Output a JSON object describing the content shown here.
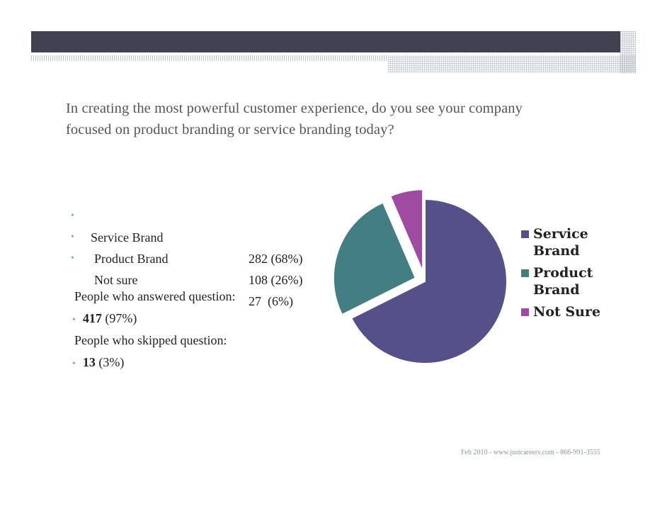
{
  "question": {
    "line1": "In creating the most powerful customer experience, do you see your company",
    "line2": "focused on product branding or service branding today?"
  },
  "responses": [
    {
      "label": "Service Brand",
      "value": "282 (68%)"
    },
    {
      "label": "Product Brand",
      "value": "108 (26%)"
    },
    {
      "label": "Not sure",
      "value": "27  (6%)"
    }
  ],
  "stats": {
    "answered_label": "People who answered question:",
    "answered_count": "417",
    "answered_pct": "(97%)",
    "skipped_label": "People who skipped question:",
    "skipped_count": "13",
    "skipped_pct": "(3%)"
  },
  "chart_data": {
    "type": "pie",
    "categories": [
      "Service Brand",
      "Product Brand",
      "Not Sure"
    ],
    "values": [
      282,
      108,
      27
    ],
    "colors": [
      "#545188",
      "#437e82",
      "#9e4ba1"
    ],
    "exploded": [
      false,
      true,
      true
    ],
    "legend": {
      "placement": "right"
    }
  },
  "legend": {
    "items": [
      {
        "line1": "Service",
        "line2": "Brand"
      },
      {
        "line1": "Product",
        "line2": "Brand"
      },
      {
        "line1": "Not Sure",
        "line2": ""
      }
    ]
  },
  "footer": {
    "text": "Feb 2010 - www.justcareers.com - 866-991-3555"
  }
}
